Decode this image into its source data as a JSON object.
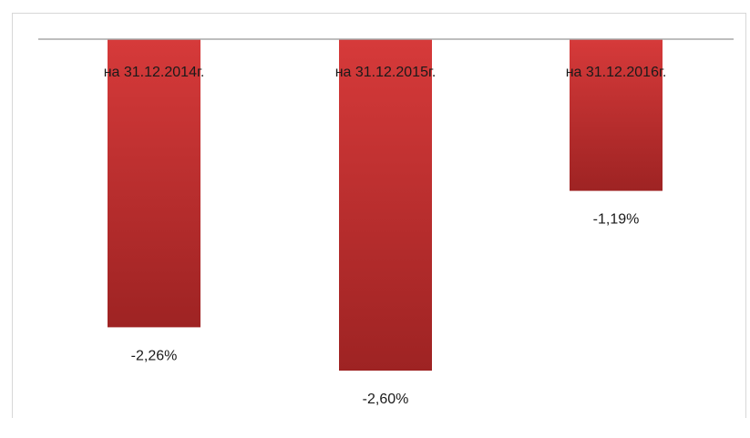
{
  "chart_data": {
    "type": "bar",
    "categories": [
      "на 31.12.2014г.",
      "на 31.12.2015г.",
      "на 31.12.2016г."
    ],
    "values": [
      -2.26,
      -2.6,
      -1.19
    ],
    "data_labels": [
      "-2,26%",
      "-2,60%",
      "-1,19%"
    ],
    "ylim": [
      -2.6,
      0
    ],
    "grid": false,
    "legend": "none",
    "colors": {
      "bar_top": "#d63a3a",
      "bar_bottom": "#9e2323",
      "baseline": "#a8a8a8",
      "text": "#1a1a1a"
    }
  }
}
